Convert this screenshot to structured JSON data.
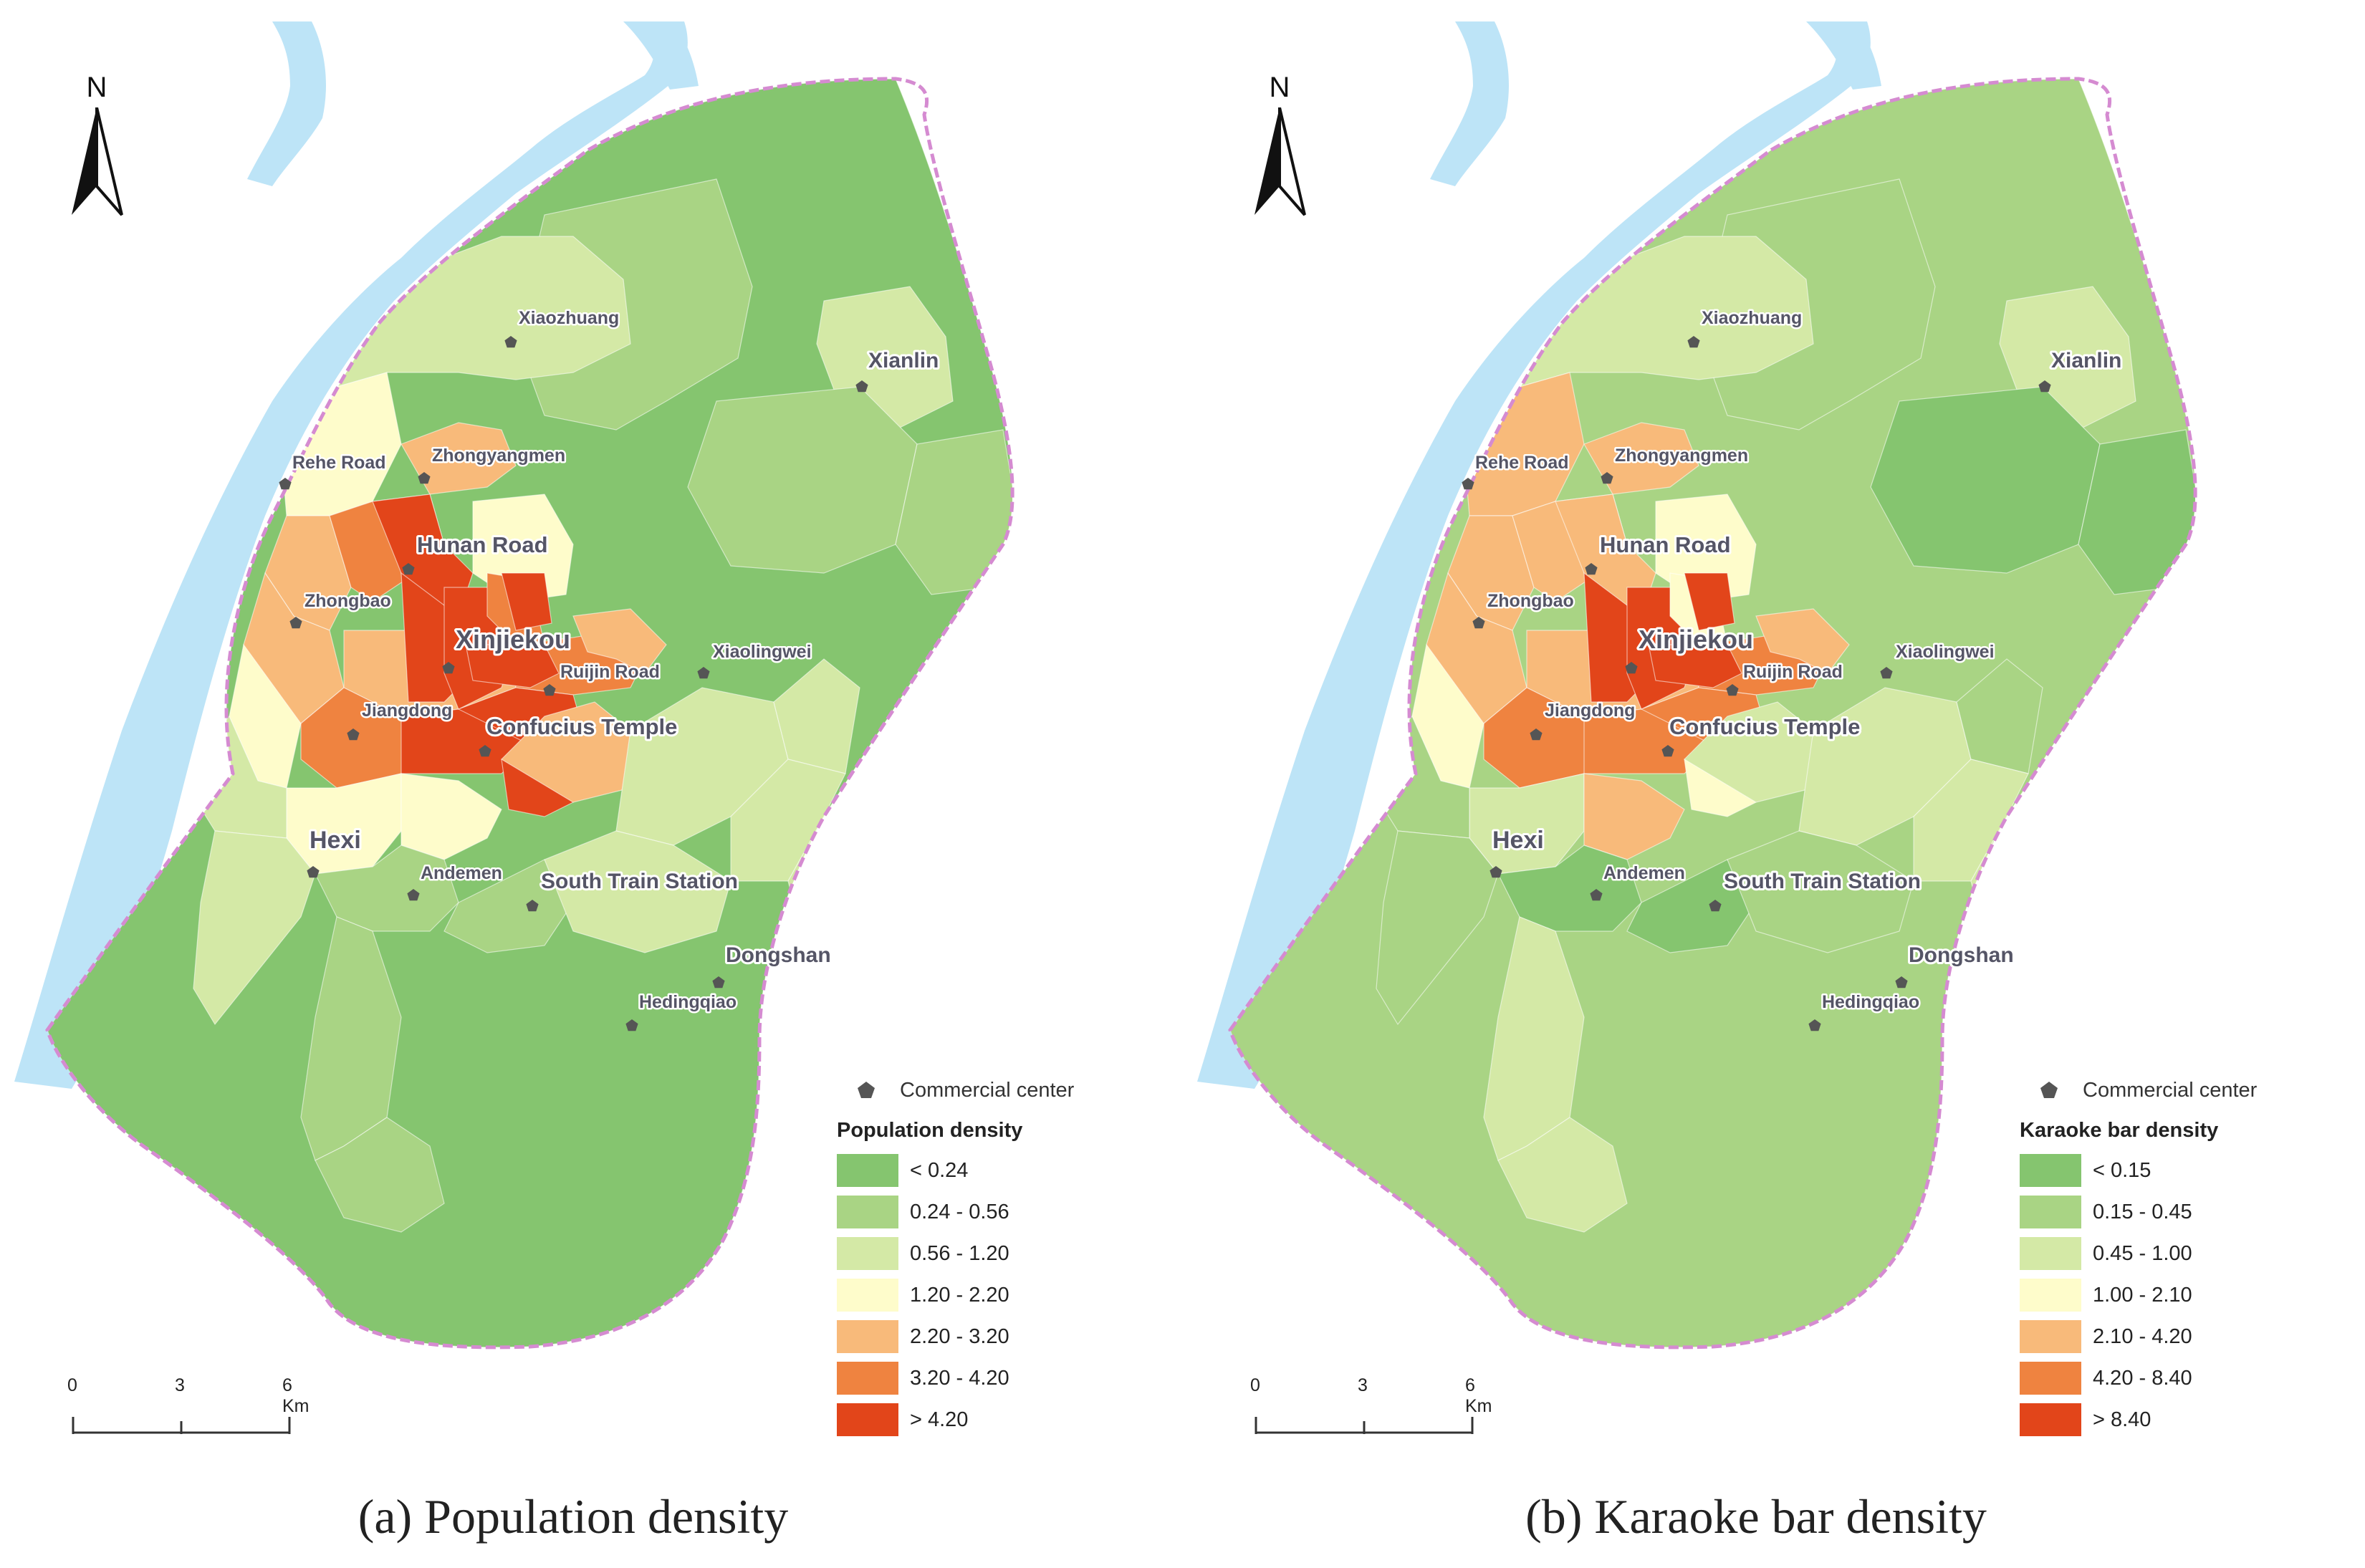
{
  "panels": [
    {
      "caption": "(a) Population density",
      "legend_marker_label": "Commercial center",
      "legend_title": "Population density",
      "classes": [
        {
          "label": "< 0.24",
          "color": "#85c56f"
        },
        {
          "label": "0.24 - 0.56",
          "color": "#a9d484"
        },
        {
          "label": "0.56 - 1.20",
          "color": "#d4e9a6"
        },
        {
          "label": "1.20 - 2.20",
          "color": "#fefccb"
        },
        {
          "label": "2.20 - 3.20",
          "color": "#f8ba7a"
        },
        {
          "label": "3.20 - 4.20",
          "color": "#ef8340"
        },
        {
          "label": "> 4.20",
          "color": "#e2451a"
        }
      ],
      "north_label": "N",
      "scale": {
        "ticks": [
          "0",
          "3",
          "6 Km"
        ]
      }
    },
    {
      "caption": "(b) Karaoke bar density",
      "legend_marker_label": "Commercial center",
      "legend_title": "Karaoke bar density",
      "classes": [
        {
          "label": "< 0.15",
          "color": "#85c56f"
        },
        {
          "label": "0.15 - 0.45",
          "color": "#a9d484"
        },
        {
          "label": "0.45 - 1.00",
          "color": "#d4e9a6"
        },
        {
          "label": "1.00 - 2.10",
          "color": "#fefccb"
        },
        {
          "label": "2.10 - 4.20",
          "color": "#f8ba7a"
        },
        {
          "label": "4.20 - 8.40",
          "color": "#ef8340"
        },
        {
          "label": "> 8.40",
          "color": "#e2451a"
        }
      ],
      "north_label": "N",
      "scale": {
        "ticks": [
          "0",
          "3",
          "6 Km"
        ]
      }
    }
  ],
  "places": [
    {
      "name": "Xiaozhuang",
      "major": false
    },
    {
      "name": "Xianlin",
      "major": true
    },
    {
      "name": "Rehe Road",
      "major": false
    },
    {
      "name": "Zhongyangmen",
      "major": false
    },
    {
      "name": "Hunan Road",
      "major": true
    },
    {
      "name": "Zhongbao",
      "major": false
    },
    {
      "name": "Xinjiekou",
      "major": true
    },
    {
      "name": "Ruijin Road",
      "major": false
    },
    {
      "name": "Xiaolingwei",
      "major": false
    },
    {
      "name": "Jiangdong",
      "major": false
    },
    {
      "name": "Confucius Temple",
      "major": true
    },
    {
      "name": "Hexi",
      "major": true
    },
    {
      "name": "Andemen",
      "major": false
    },
    {
      "name": "South Train Station",
      "major": true
    },
    {
      "name": "Dongshan",
      "major": true
    },
    {
      "name": "Hedingqiao",
      "major": false
    }
  ],
  "colors": {
    "river": "#bde4f7",
    "boundary": "#d58bd1",
    "marker": "#555555",
    "label_halo": "#ffffff",
    "label_text": "#555566"
  }
}
